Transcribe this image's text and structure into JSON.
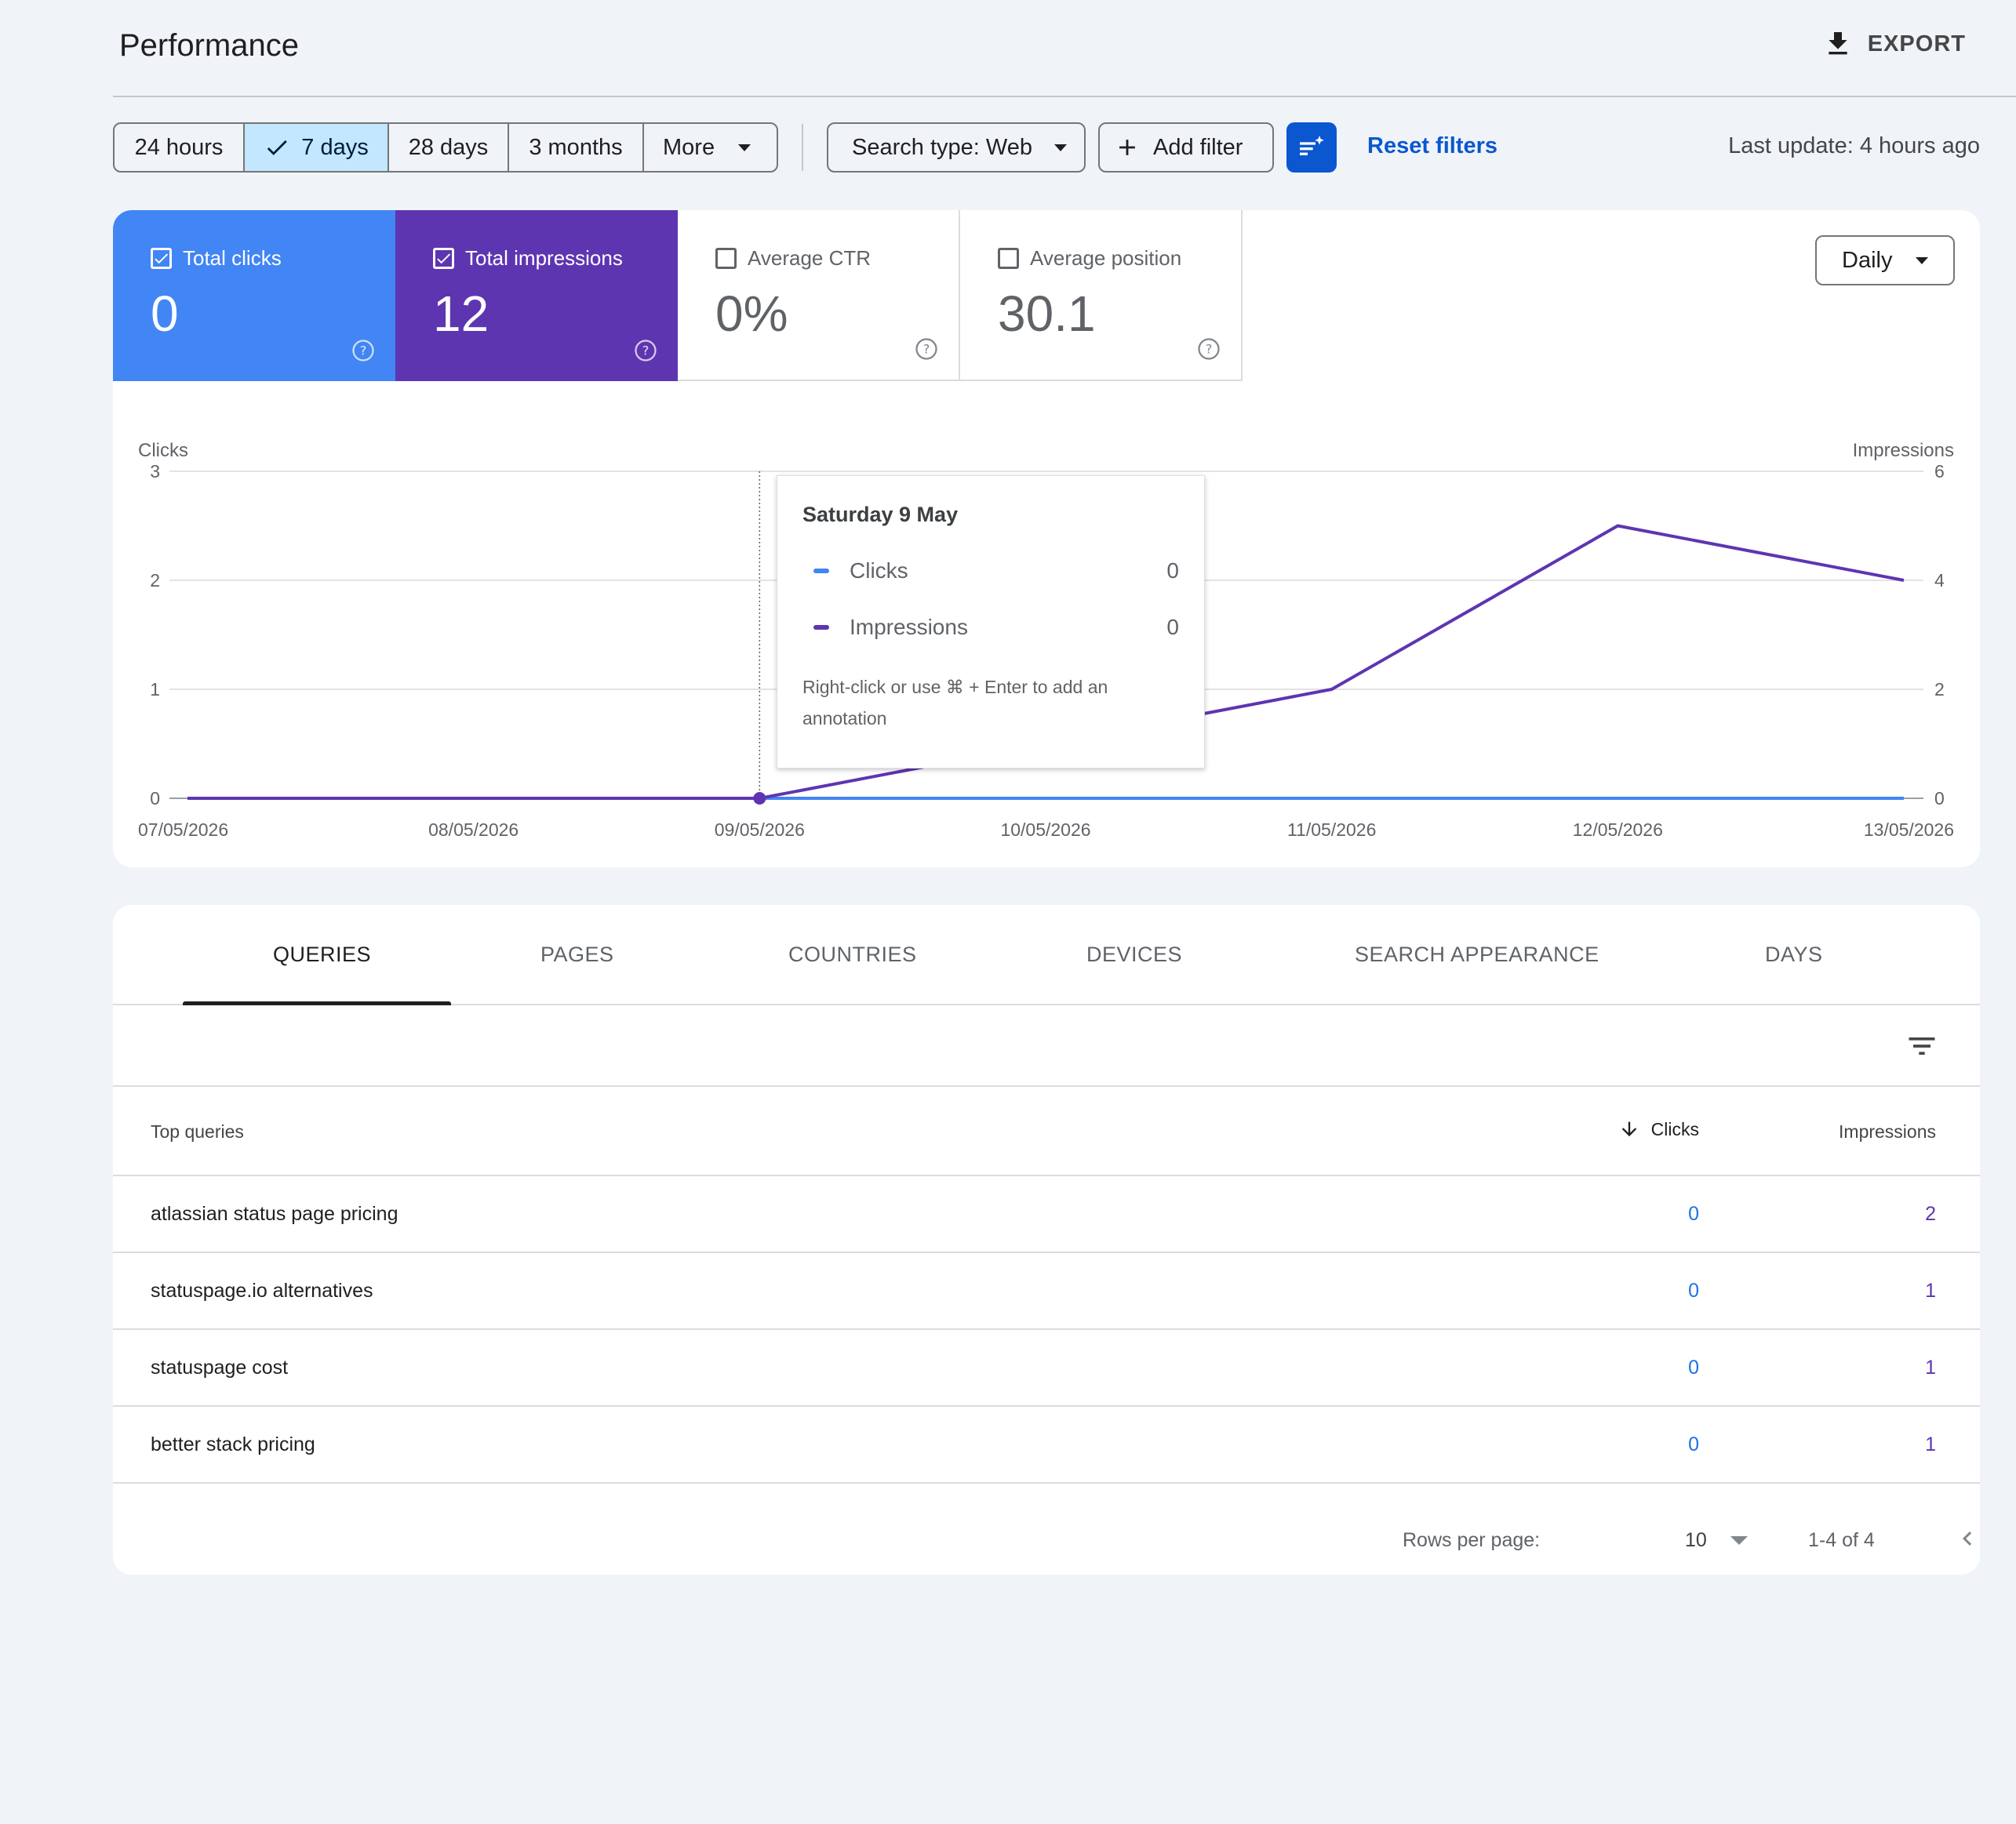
{
  "header": {
    "title": "Performance",
    "export_label": "EXPORT"
  },
  "filters": {
    "ranges": [
      "24 hours",
      "7 days",
      "28 days",
      "3 months",
      "More"
    ],
    "selected_range": "7 days",
    "search_type": "Search type: Web",
    "add_filter": "Add filter",
    "reset": "Reset filters",
    "last_update": "Last update: 4 hours ago"
  },
  "metrics": [
    {
      "label": "Total clicks",
      "value": "0",
      "checked": true,
      "color": "#4285f4"
    },
    {
      "label": "Total impressions",
      "value": "12",
      "checked": true,
      "color": "#5e35b1"
    },
    {
      "label": "Average CTR",
      "value": "0%",
      "checked": false
    },
    {
      "label": "Average position",
      "value": "30.1",
      "checked": false
    }
  ],
  "granularity": "Daily",
  "chart_data": {
    "type": "line",
    "x": [
      "07/05/2026",
      "08/05/2026",
      "09/05/2026",
      "10/05/2026",
      "11/05/2026",
      "12/05/2026",
      "13/05/2026"
    ],
    "series": [
      {
        "name": "Clicks",
        "axis": "left",
        "color": "#4285f4",
        "values": [
          0,
          0,
          0,
          0,
          0,
          0,
          0
        ]
      },
      {
        "name": "Impressions",
        "axis": "right",
        "color": "#5e35b1",
        "values": [
          0,
          0,
          0,
          1,
          2,
          5,
          4
        ]
      }
    ],
    "ylabel_left": "Clicks",
    "ylabel_right": "Impressions",
    "yticks_left": [
      "0",
      "1",
      "2",
      "3"
    ],
    "yticks_right": [
      "0",
      "2",
      "4",
      "6"
    ],
    "ylim_left": [
      0,
      3
    ],
    "ylim_right": [
      0,
      6
    ],
    "grid": true,
    "hover_index": 2
  },
  "tooltip": {
    "title": "Saturday 9 May",
    "rows": [
      {
        "label": "Clicks",
        "value": "0"
      },
      {
        "label": "Impressions",
        "value": "0"
      }
    ],
    "note": "Right-click or use ⌘ + Enter to add an annotation"
  },
  "tabs": [
    "QUERIES",
    "PAGES",
    "COUNTRIES",
    "DEVICES",
    "SEARCH APPEARANCE",
    "DAYS"
  ],
  "table": {
    "headers": {
      "query": "Top queries",
      "clicks": "Clicks",
      "impressions": "Impressions"
    },
    "rows": [
      {
        "query": "atlassian status page pricing",
        "clicks": "0",
        "impressions": "2"
      },
      {
        "query": "statuspage.io alternatives",
        "clicks": "0",
        "impressions": "1"
      },
      {
        "query": "statuspage cost",
        "clicks": "0",
        "impressions": "1"
      },
      {
        "query": "better stack pricing",
        "clicks": "0",
        "impressions": "1"
      }
    ]
  },
  "pagination": {
    "rows_per_page_label": "Rows per page:",
    "rows_per_page": "10",
    "range": "1-4 of 4"
  }
}
